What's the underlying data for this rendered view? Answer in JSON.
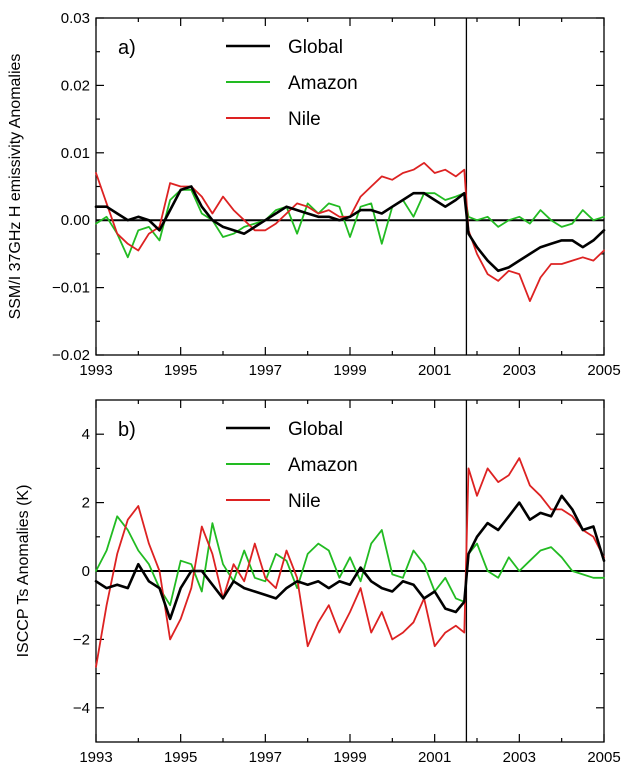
{
  "chart_data": [
    {
      "type": "line",
      "panel_label": "a)",
      "ylabel": "SSM/I 37GHz H emissivity Anomalies",
      "xlim": [
        1993,
        2005
      ],
      "ylim": [
        -0.02,
        0.03
      ],
      "xticks": [
        "1993",
        "1995",
        "1997",
        "1999",
        "2001",
        "2003",
        "2005"
      ],
      "yticks": [
        "−0.02",
        "−0.01",
        "0.00",
        "0.01",
        "0.02",
        "0.03"
      ],
      "ytick_values": [
        -0.02,
        -0.01,
        0.0,
        0.01,
        0.02,
        0.03
      ],
      "zero_line": 0,
      "vertical_marker_x": 2001.75,
      "legend": {
        "placement": "top-center",
        "entries": [
          "Global",
          "Amazon",
          "Nile"
        ]
      },
      "series": [
        {
          "name": "Global",
          "color": "#000000",
          "x": [
            1993.0,
            1993.25,
            1993.5,
            1993.75,
            1994.0,
            1994.25,
            1994.5,
            1994.75,
            1995.0,
            1995.25,
            1995.5,
            1995.75,
            1996.0,
            1996.25,
            1996.5,
            1996.75,
            1997.0,
            1997.25,
            1997.5,
            1997.75,
            1998.0,
            1998.25,
            1998.5,
            1998.75,
            1999.0,
            1999.25,
            1999.5,
            1999.75,
            2000.0,
            2000.25,
            2000.5,
            2000.75,
            2001.0,
            2001.25,
            2001.5,
            2001.7,
            2001.8,
            2002.0,
            2002.25,
            2002.5,
            2002.75,
            2003.0,
            2003.25,
            2003.5,
            2003.75,
            2004.0,
            2004.25,
            2004.5,
            2004.75,
            2005.0
          ],
          "y": [
            0.002,
            0.002,
            0.001,
            0.0,
            0.0005,
            0.0,
            -0.0015,
            0.0015,
            0.0045,
            0.005,
            0.002,
            0.0,
            -0.001,
            -0.0015,
            -0.002,
            -0.001,
            0.0,
            0.001,
            0.002,
            0.0015,
            0.001,
            0.0005,
            0.0005,
            0.0,
            0.0005,
            0.0015,
            0.0015,
            0.001,
            0.002,
            0.003,
            0.004,
            0.004,
            0.003,
            0.002,
            0.003,
            0.004,
            -0.002,
            -0.004,
            -0.006,
            -0.0075,
            -0.007,
            -0.006,
            -0.005,
            -0.004,
            -0.0035,
            -0.003,
            -0.003,
            -0.004,
            -0.003,
            -0.0015
          ]
        },
        {
          "name": "Amazon",
          "color": "#22bb22",
          "x": [
            1993.0,
            1993.25,
            1993.5,
            1993.75,
            1994.0,
            1994.25,
            1994.5,
            1994.75,
            1995.0,
            1995.25,
            1995.5,
            1995.75,
            1996.0,
            1996.25,
            1996.5,
            1996.75,
            1997.0,
            1997.25,
            1997.5,
            1997.75,
            1998.0,
            1998.25,
            1998.5,
            1998.75,
            1999.0,
            1999.25,
            1999.5,
            1999.75,
            2000.0,
            2000.25,
            2000.5,
            2000.75,
            2001.0,
            2001.25,
            2001.5,
            2001.7,
            2001.8,
            2002.0,
            2002.25,
            2002.5,
            2002.75,
            2003.0,
            2003.25,
            2003.5,
            2003.75,
            2004.0,
            2004.25,
            2004.5,
            2004.75,
            2005.0
          ],
          "y": [
            -0.0005,
            0.0005,
            -0.002,
            -0.0055,
            -0.0015,
            -0.001,
            -0.003,
            0.003,
            0.0045,
            0.0045,
            0.001,
            0.0,
            -0.0025,
            -0.002,
            -0.001,
            -0.0005,
            0.0,
            0.0015,
            0.002,
            -0.002,
            0.0025,
            0.001,
            0.0025,
            0.002,
            -0.0025,
            0.002,
            0.0025,
            -0.0035,
            0.002,
            0.003,
            0.0005,
            0.004,
            0.004,
            0.003,
            0.0035,
            0.004,
            0.0005,
            0.0,
            0.0005,
            -0.001,
            0.0,
            0.0005,
            -0.0005,
            0.0015,
            0.0,
            -0.001,
            -0.0005,
            0.0015,
            0.0,
            0.0005
          ]
        },
        {
          "name": "Nile",
          "color": "#dd2222",
          "x": [
            1993.0,
            1993.25,
            1993.5,
            1993.75,
            1994.0,
            1994.25,
            1994.5,
            1994.75,
            1995.0,
            1995.25,
            1995.5,
            1995.75,
            1996.0,
            1996.25,
            1996.5,
            1996.75,
            1997.0,
            1997.25,
            1997.5,
            1997.75,
            1998.0,
            1998.25,
            1998.5,
            1998.75,
            1999.0,
            1999.25,
            1999.5,
            1999.75,
            2000.0,
            2000.25,
            2000.5,
            2000.75,
            2001.0,
            2001.25,
            2001.5,
            2001.7,
            2001.8,
            2002.0,
            2002.25,
            2002.5,
            2002.75,
            2003.0,
            2003.25,
            2003.5,
            2003.75,
            2004.0,
            2004.25,
            2004.5,
            2004.75,
            2005.0
          ],
          "y": [
            0.007,
            0.0025,
            -0.002,
            -0.0035,
            -0.0045,
            -0.002,
            -0.001,
            0.0055,
            0.005,
            0.005,
            0.0035,
            0.001,
            0.0035,
            0.0015,
            0.0,
            -0.0015,
            -0.0015,
            -0.0005,
            0.001,
            0.0025,
            0.002,
            0.001,
            0.0015,
            0.0005,
            0.0005,
            0.0035,
            0.005,
            0.0065,
            0.006,
            0.007,
            0.0075,
            0.0085,
            0.007,
            0.0075,
            0.0065,
            0.0075,
            -0.0015,
            -0.005,
            -0.008,
            -0.009,
            -0.0075,
            -0.008,
            -0.012,
            -0.0085,
            -0.0065,
            -0.0065,
            -0.006,
            -0.0055,
            -0.006,
            -0.0045
          ]
        }
      ]
    },
    {
      "type": "line",
      "panel_label": "b)",
      "ylabel": "ISCCP Ts Anomalies (K)",
      "xlim": [
        1993,
        2005
      ],
      "ylim": [
        -5,
        5
      ],
      "xticks": [
        "1993",
        "1995",
        "1997",
        "1999",
        "2001",
        "2003",
        "2005"
      ],
      "yticks": [
        "−4",
        "−2",
        "0",
        "2",
        "4"
      ],
      "ytick_values": [
        -4,
        -2,
        0,
        2,
        4
      ],
      "zero_line": 0,
      "vertical_marker_x": 2001.75,
      "legend": {
        "placement": "top-center",
        "entries": [
          "Global",
          "Amazon",
          "Nile"
        ]
      },
      "series": [
        {
          "name": "Global",
          "color": "#000000",
          "x": [
            1993.0,
            1993.25,
            1993.5,
            1993.75,
            1994.0,
            1994.25,
            1994.5,
            1994.75,
            1995.0,
            1995.25,
            1995.5,
            1995.75,
            1996.0,
            1996.25,
            1996.5,
            1996.75,
            1997.0,
            1997.25,
            1997.5,
            1997.75,
            1998.0,
            1998.25,
            1998.5,
            1998.75,
            1999.0,
            1999.25,
            1999.5,
            1999.75,
            2000.0,
            2000.25,
            2000.5,
            2000.75,
            2001.0,
            2001.25,
            2001.5,
            2001.7,
            2001.8,
            2002.0,
            2002.25,
            2002.5,
            2002.75,
            2003.0,
            2003.25,
            2003.5,
            2003.75,
            2004.0,
            2004.25,
            2004.5,
            2004.75,
            2005.0
          ],
          "y": [
            -0.3,
            -0.5,
            -0.4,
            -0.5,
            0.2,
            -0.3,
            -0.5,
            -1.4,
            -0.5,
            0.0,
            0.0,
            -0.4,
            -0.8,
            -0.3,
            -0.5,
            -0.6,
            -0.7,
            -0.8,
            -0.5,
            -0.3,
            -0.4,
            -0.3,
            -0.5,
            -0.3,
            -0.4,
            0.1,
            -0.3,
            -0.5,
            -0.6,
            -0.3,
            -0.4,
            -0.8,
            -0.6,
            -1.1,
            -1.2,
            -0.9,
            0.5,
            1.0,
            1.4,
            1.2,
            1.6,
            2.0,
            1.5,
            1.7,
            1.6,
            2.2,
            1.8,
            1.2,
            1.3,
            0.3
          ]
        },
        {
          "name": "Amazon",
          "color": "#22bb22",
          "x": [
            1993.0,
            1993.25,
            1993.5,
            1993.75,
            1994.0,
            1994.25,
            1994.5,
            1994.75,
            1995.0,
            1995.25,
            1995.5,
            1995.75,
            1996.0,
            1996.25,
            1996.5,
            1996.75,
            1997.0,
            1997.25,
            1997.5,
            1997.75,
            1998.0,
            1998.25,
            1998.5,
            1998.75,
            1999.0,
            1999.25,
            1999.5,
            1999.75,
            2000.0,
            2000.25,
            2000.5,
            2000.75,
            2001.0,
            2001.25,
            2001.5,
            2001.7,
            2001.8,
            2002.0,
            2002.25,
            2002.5,
            2002.75,
            2003.0,
            2003.25,
            2003.5,
            2003.75,
            2004.0,
            2004.25,
            2004.5,
            2004.75,
            2005.0
          ],
          "y": [
            0.0,
            0.6,
            1.6,
            1.2,
            0.6,
            0.2,
            -0.5,
            -1.0,
            0.3,
            0.2,
            -0.6,
            1.4,
            0.2,
            -0.3,
            0.6,
            -0.2,
            -0.3,
            0.5,
            0.3,
            -0.5,
            0.5,
            0.8,
            0.6,
            -0.2,
            0.4,
            -0.3,
            0.8,
            1.2,
            -0.1,
            -0.2,
            0.6,
            0.2,
            -0.6,
            -0.2,
            -0.8,
            -0.9,
            0.5,
            0.8,
            0.0,
            -0.2,
            0.4,
            0.0,
            0.3,
            0.6,
            0.7,
            0.4,
            0.0,
            -0.1,
            -0.2,
            -0.2
          ]
        },
        {
          "name": "Nile",
          "color": "#dd2222",
          "x": [
            1993.0,
            1993.25,
            1993.5,
            1993.75,
            1994.0,
            1994.25,
            1994.5,
            1994.75,
            1995.0,
            1995.25,
            1995.5,
            1995.75,
            1996.0,
            1996.25,
            1996.5,
            1996.75,
            1997.0,
            1997.25,
            1997.5,
            1997.75,
            1998.0,
            1998.25,
            1998.5,
            1998.75,
            1999.0,
            1999.25,
            1999.5,
            1999.75,
            2000.0,
            2000.25,
            2000.5,
            2000.75,
            2001.0,
            2001.25,
            2001.5,
            2001.7,
            2001.8,
            2002.0,
            2002.25,
            2002.5,
            2002.75,
            2003.0,
            2003.25,
            2003.5,
            2003.75,
            2004.0,
            2004.25,
            2004.5,
            2004.75,
            2005.0
          ],
          "y": [
            -2.8,
            -1.0,
            0.5,
            1.5,
            1.9,
            0.8,
            0.0,
            -2.0,
            -1.4,
            -0.5,
            1.3,
            0.5,
            -0.8,
            0.2,
            -0.3,
            0.8,
            -0.2,
            -0.5,
            0.6,
            -0.2,
            -2.2,
            -1.5,
            -1.0,
            -1.8,
            -1.2,
            -0.5,
            -1.8,
            -1.2,
            -2.0,
            -1.8,
            -1.5,
            -0.8,
            -2.2,
            -1.8,
            -1.6,
            -1.8,
            3.0,
            2.2,
            3.0,
            2.6,
            2.8,
            3.3,
            2.5,
            2.2,
            1.8,
            1.8,
            1.6,
            1.2,
            1.0,
            0.4
          ]
        }
      ]
    }
  ]
}
